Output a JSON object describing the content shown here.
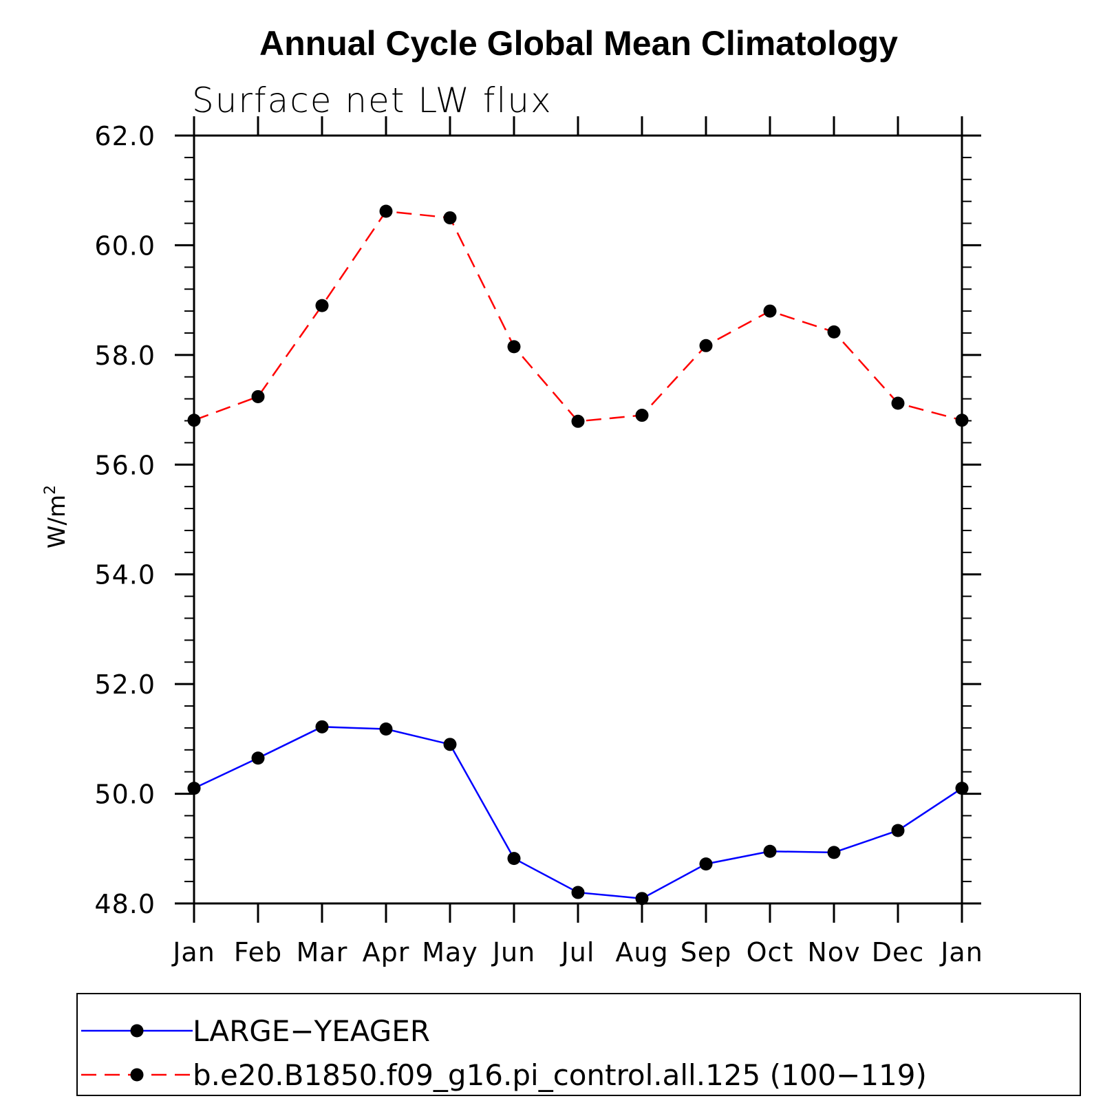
{
  "chart_data": {
    "type": "line",
    "title": "Annual Cycle Global Mean Climatology",
    "subtitle": "Surface net LW flux",
    "ylabel_base": "W/m",
    "ylabel_sup": "2",
    "xlabel": "",
    "categories": [
      "Jan",
      "Feb",
      "Mar",
      "Apr",
      "May",
      "Jun",
      "Jul",
      "Aug",
      "Sep",
      "Oct",
      "Nov",
      "Dec",
      "Jan"
    ],
    "ylim": [
      48.0,
      62.0
    ],
    "yticks": [
      "48.0",
      "50.0",
      "52.0",
      "54.0",
      "56.0",
      "58.0",
      "60.0",
      "62.0"
    ],
    "series": [
      {
        "name": "LARGE−YEAGER",
        "color": "#0000ff",
        "style": "solid",
        "values": [
          50.1,
          50.65,
          51.22,
          51.18,
          50.9,
          48.82,
          48.2,
          48.09,
          48.72,
          48.95,
          48.93,
          49.33,
          50.1
        ]
      },
      {
        "name": "b.e20.B1850.f09_g16.pi_control.all.125 (100−119)",
        "color": "#ff0000",
        "style": "dashed",
        "values": [
          56.81,
          57.24,
          58.9,
          60.62,
          60.5,
          58.15,
          56.79,
          56.9,
          58.17,
          58.8,
          58.42,
          57.12,
          56.81
        ]
      }
    ],
    "marker_color": "#000000",
    "legend_position": "bottom"
  }
}
